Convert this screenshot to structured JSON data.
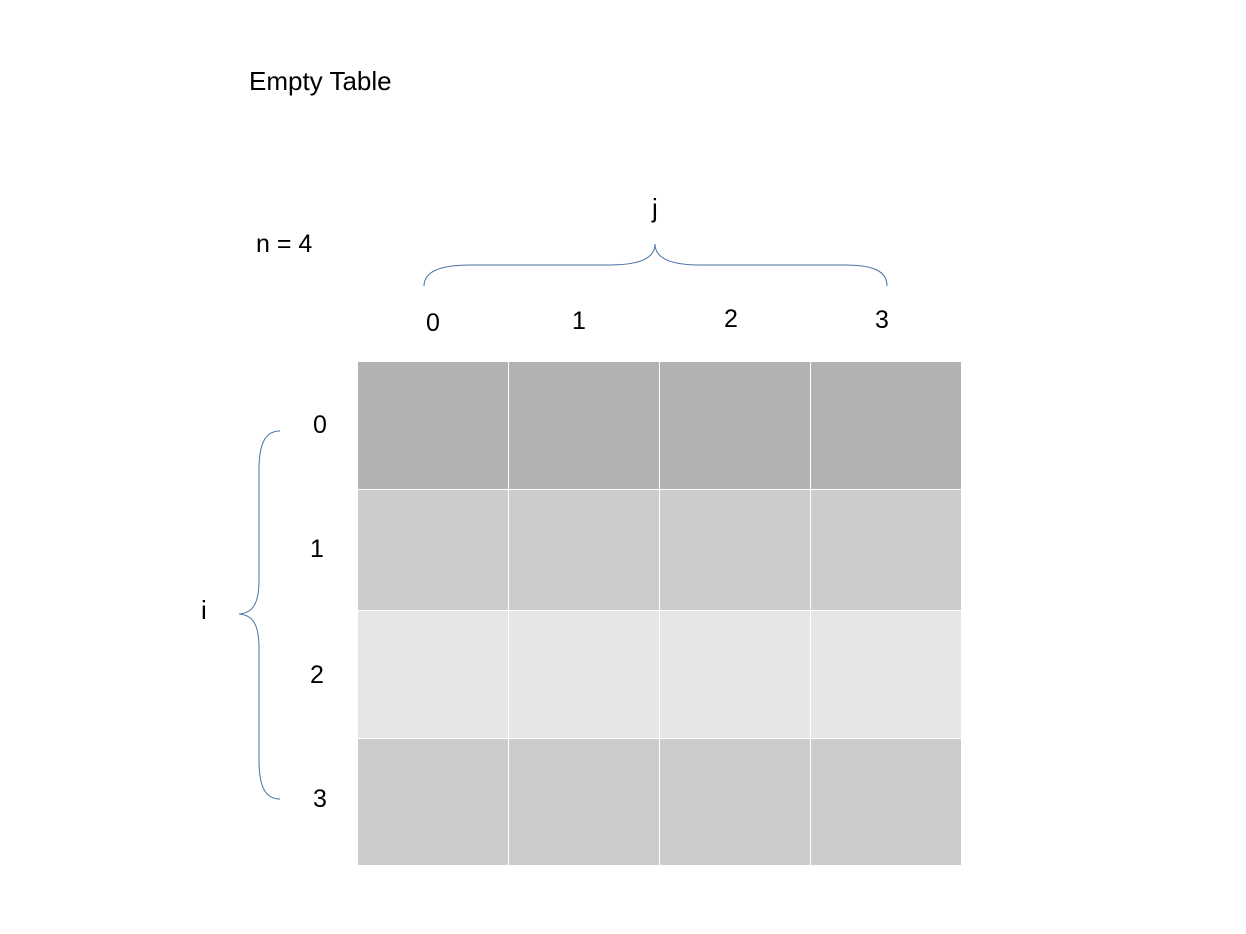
{
  "title": "Empty Table",
  "n_label": "n = 4",
  "column_variable": "j",
  "row_variable": "i",
  "column_indices": [
    "0",
    "1",
    "2",
    "3"
  ],
  "row_indices": [
    "0",
    "1",
    "2",
    "3"
  ],
  "table": {
    "rows": 4,
    "columns": 4,
    "cells": [
      [
        "",
        "",
        "",
        ""
      ],
      [
        "",
        "",
        "",
        ""
      ],
      [
        "",
        "",
        "",
        ""
      ],
      [
        "",
        "",
        "",
        ""
      ]
    ],
    "row_colors": [
      "#b2b2b2",
      "#cccccc",
      "#e6e6e6",
      "#cccccc"
    ]
  },
  "brace_color": "#4a72a8"
}
